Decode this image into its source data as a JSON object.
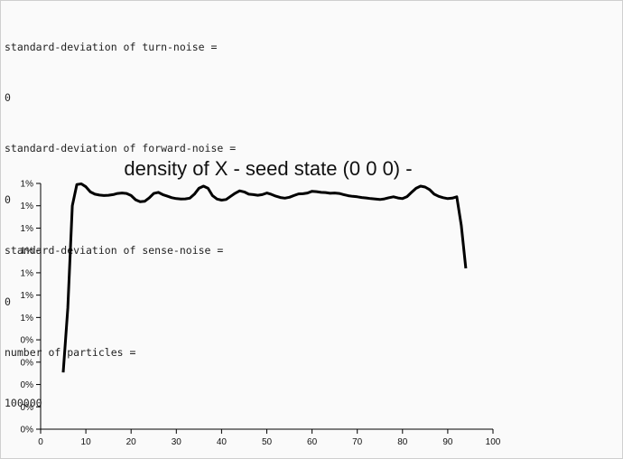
{
  "output_lines": [
    "standard-deviation of turn-noise =",
    "0",
    "standard-deviation of forward-noise =",
    "0",
    "standard-deviation of sense-noise =",
    "0",
    "number of particles =",
    "100000"
  ],
  "chart_data": {
    "type": "line",
    "title": "density of X - seed state (0 0 0) -",
    "xlabel": "",
    "ylabel": "",
    "xlim": [
      0,
      100
    ],
    "x_ticks": [
      0,
      10,
      20,
      30,
      40,
      50,
      60,
      70,
      80,
      90,
      100
    ],
    "y_tick_labels": [
      "0%",
      "0%",
      "0%",
      "0%",
      "0%",
      "1%",
      "1%",
      "1%",
      "1%",
      "1%",
      "1%",
      "1%"
    ],
    "grid": false,
    "line_color": "#000000",
    "series": [
      {
        "x": [
          5,
          6,
          7,
          8,
          9,
          10,
          11,
          12,
          13,
          14,
          15,
          16,
          17,
          18,
          19,
          20,
          21,
          22,
          23,
          24,
          25,
          26,
          27,
          28,
          29,
          30,
          31,
          32,
          33,
          34,
          35,
          36,
          37,
          38,
          39,
          40,
          41,
          42,
          43,
          44,
          45,
          46,
          47,
          48,
          49,
          50,
          51,
          52,
          53,
          54,
          55,
          56,
          57,
          58,
          59,
          60,
          61,
          62,
          63,
          64,
          65,
          66,
          67,
          68,
          69,
          70,
          71,
          72,
          73,
          74,
          75,
          76,
          77,
          78,
          79,
          80,
          81,
          82,
          83,
          84,
          85,
          86,
          87,
          88,
          89,
          90,
          91,
          92,
          93,
          94
        ],
        "y": [
          2.54,
          5.42,
          10.0,
          10.95,
          10.98,
          10.85,
          10.62,
          10.52,
          10.48,
          10.46,
          10.47,
          10.5,
          10.55,
          10.57,
          10.55,
          10.46,
          10.27,
          10.18,
          10.2,
          10.35,
          10.55,
          10.6,
          10.5,
          10.43,
          10.36,
          10.32,
          10.3,
          10.31,
          10.34,
          10.52,
          10.78,
          10.88,
          10.78,
          10.45,
          10.3,
          10.25,
          10.28,
          10.42,
          10.56,
          10.67,
          10.62,
          10.52,
          10.5,
          10.47,
          10.5,
          10.57,
          10.51,
          10.43,
          10.37,
          10.34,
          10.38,
          10.46,
          10.53,
          10.54,
          10.57,
          10.65,
          10.63,
          10.6,
          10.59,
          10.56,
          10.57,
          10.55,
          10.5,
          10.45,
          10.42,
          10.4,
          10.37,
          10.35,
          10.32,
          10.3,
          10.28,
          10.31,
          10.36,
          10.4,
          10.35,
          10.32,
          10.41,
          10.6,
          10.78,
          10.88,
          10.84,
          10.72,
          10.52,
          10.42,
          10.36,
          10.32,
          10.34,
          10.4,
          9.12,
          7.2
        ]
      }
    ]
  }
}
